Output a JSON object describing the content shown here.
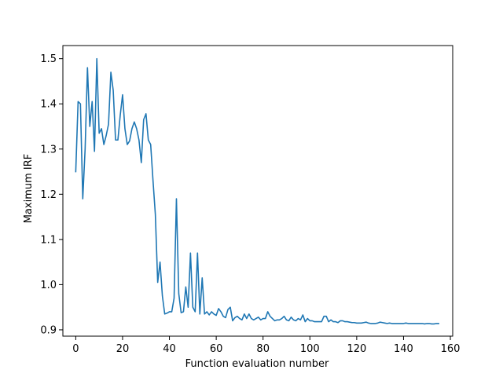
{
  "chart_data": {
    "type": "line",
    "title": "",
    "xlabel": "Function evaluation number",
    "ylabel": "Maximum IRF",
    "xlim": [
      -5.5,
      161
    ],
    "ylim": [
      0.886,
      1.529
    ],
    "xticks": [
      0,
      20,
      40,
      60,
      80,
      100,
      120,
      140,
      160
    ],
    "xtick_labels": [
      "0",
      "20",
      "40",
      "60",
      "80",
      "100",
      "120",
      "140",
      "160"
    ],
    "yticks": [
      0.9,
      1.0,
      1.1,
      1.2,
      1.3,
      1.4,
      1.5
    ],
    "ytick_labels": [
      "0.9",
      "1.0",
      "1.1",
      "1.2",
      "1.3",
      "1.4",
      "1.5"
    ],
    "grid": false,
    "series": [
      {
        "color": "#1f77b4",
        "x": [
          0,
          1,
          2,
          3,
          4,
          5,
          6,
          7,
          8,
          9,
          10,
          11,
          12,
          13,
          14,
          15,
          16,
          17,
          18,
          19,
          20,
          21,
          22,
          23,
          24,
          25,
          26,
          27,
          28,
          29,
          30,
          31,
          32,
          33,
          34,
          35,
          36,
          37,
          38,
          39,
          40,
          41,
          42,
          43,
          44,
          45,
          46,
          47,
          48,
          49,
          50,
          51,
          52,
          53,
          54,
          55,
          56,
          57,
          58,
          59,
          60,
          61,
          62,
          63,
          64,
          65,
          66,
          67,
          68,
          69,
          70,
          71,
          72,
          73,
          74,
          75,
          76,
          77,
          78,
          79,
          80,
          81,
          82,
          83,
          84,
          85,
          86,
          87,
          88,
          89,
          90,
          91,
          92,
          93,
          94,
          95,
          96,
          97,
          98,
          99,
          100,
          101,
          102,
          103,
          104,
          105,
          106,
          107,
          108,
          109,
          110,
          111,
          112,
          113,
          114,
          115,
          116,
          117,
          118,
          119,
          120,
          121,
          122,
          123,
          124,
          125,
          126,
          127,
          128,
          129,
          130,
          131,
          132,
          133,
          134,
          135,
          136,
          137,
          138,
          139,
          140,
          141,
          142,
          143,
          144,
          145,
          146,
          147,
          148,
          149,
          150,
          151,
          152,
          153,
          154,
          155
        ],
        "y": [
          1.25,
          1.405,
          1.4,
          1.19,
          1.3,
          1.48,
          1.35,
          1.405,
          1.295,
          1.5,
          1.335,
          1.345,
          1.31,
          1.33,
          1.355,
          1.47,
          1.43,
          1.32,
          1.32,
          1.375,
          1.42,
          1.345,
          1.31,
          1.318,
          1.345,
          1.36,
          1.345,
          1.32,
          1.27,
          1.365,
          1.378,
          1.32,
          1.31,
          1.23,
          1.155,
          1.005,
          1.05,
          0.975,
          0.935,
          0.937,
          0.94,
          0.94,
          0.97,
          1.19,
          0.98,
          0.938,
          0.94,
          0.995,
          0.95,
          1.07,
          0.95,
          0.94,
          1.07,
          0.935,
          1.015,
          0.935,
          0.94,
          0.933,
          0.94,
          0.935,
          0.932,
          0.947,
          0.94,
          0.93,
          0.927,
          0.945,
          0.95,
          0.92,
          0.927,
          0.93,
          0.925,
          0.922,
          0.935,
          0.925,
          0.935,
          0.925,
          0.922,
          0.925,
          0.928,
          0.922,
          0.925,
          0.925,
          0.94,
          0.93,
          0.925,
          0.92,
          0.922,
          0.922,
          0.925,
          0.93,
          0.922,
          0.92,
          0.928,
          0.922,
          0.92,
          0.925,
          0.922,
          0.933,
          0.918,
          0.925,
          0.92,
          0.92,
          0.918,
          0.918,
          0.918,
          0.918,
          0.93,
          0.93,
          0.918,
          0.922,
          0.918,
          0.918,
          0.916,
          0.92,
          0.92,
          0.918,
          0.918,
          0.917,
          0.916,
          0.916,
          0.915,
          0.915,
          0.915,
          0.916,
          0.917,
          0.915,
          0.914,
          0.914,
          0.914,
          0.915,
          0.917,
          0.916,
          0.915,
          0.914,
          0.915,
          0.914,
          0.914,
          0.914,
          0.914,
          0.914,
          0.914,
          0.915,
          0.914,
          0.914,
          0.914,
          0.914,
          0.914,
          0.914,
          0.914,
          0.913,
          0.914,
          0.914,
          0.913,
          0.913,
          0.914,
          0.914
        ]
      }
    ]
  }
}
